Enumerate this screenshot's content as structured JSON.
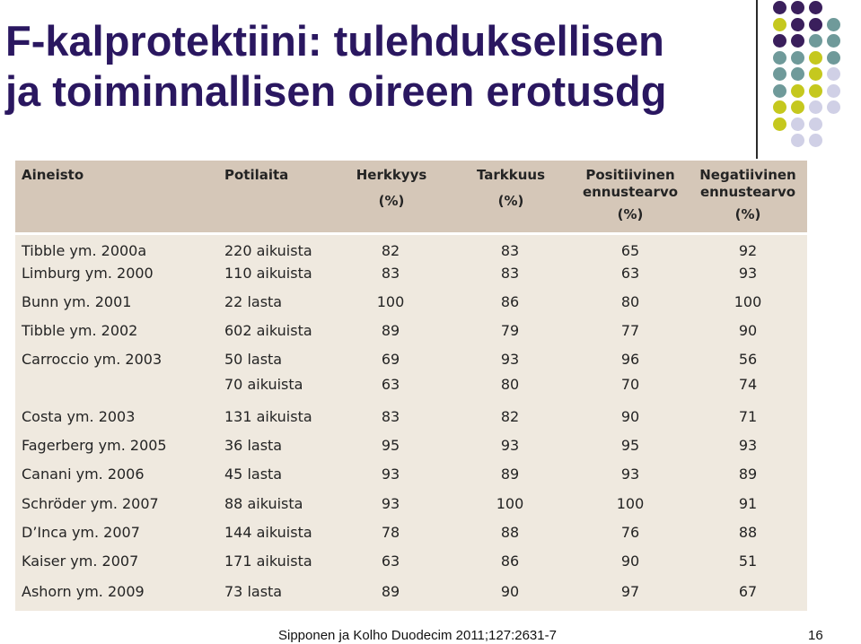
{
  "title": {
    "line1": "F-kalprotektiini: tulehduksellisen",
    "line2": "ja toiminnallisen oireen erotusdg"
  },
  "colors": {
    "title": "#2a1760",
    "dot_purple": "#3a1f5c",
    "dot_teal": "#6f9a9a",
    "dot_lime": "#c5c81e",
    "dot_lavender": "#d0d0e6",
    "table_header_bg": "#d5c7b8",
    "table_body_bg": "#efe9df"
  },
  "table": {
    "headers": {
      "study": "Aineisto",
      "patients": "Potilaita",
      "sensitivity": "Herkkyys",
      "sensitivity_unit": "(%)",
      "specificity": "Tarkkuus",
      "specificity_unit": "(%)",
      "ppv_1": "Positiivinen",
      "ppv_2": "ennustearvo",
      "ppv_unit": "(%)",
      "npv_1": "Negatiivinen",
      "npv_2": "ennustearvo",
      "npv_unit": "(%)"
    },
    "rows": [
      {
        "study": "Tibble ym. 2000a",
        "patients": "220 aikuista",
        "sens": "82",
        "spec": "83",
        "ppv": "65",
        "npv": "92"
      },
      {
        "study": "Limburg ym. 2000",
        "patients": "110 aikuista",
        "sens": "83",
        "spec": "83",
        "ppv": "63",
        "npv": "93"
      },
      {
        "study": "Bunn ym. 2001",
        "patients": "22 lasta",
        "sens": "100",
        "spec": "86",
        "ppv": "80",
        "npv": "100"
      },
      {
        "study": "Tibble ym. 2002",
        "patients": "602 aikuista",
        "sens": "89",
        "spec": "79",
        "ppv": "77",
        "npv": "90"
      },
      {
        "study": "Carroccio ym. 2003",
        "patients": "50 lasta",
        "sens": "69",
        "spec": "93",
        "ppv": "96",
        "npv": "56"
      },
      {
        "study": "",
        "patients": "70 aikuista",
        "sens": "63",
        "spec": "80",
        "ppv": "70",
        "npv": "74"
      },
      {
        "study": "Costa ym. 2003",
        "patients": "131 aikuista",
        "sens": "83",
        "spec": "82",
        "ppv": "90",
        "npv": "71"
      },
      {
        "study": "Fagerberg ym. 2005",
        "patients": "36 lasta",
        "sens": "95",
        "spec": "93",
        "ppv": "95",
        "npv": "93"
      },
      {
        "study": "Canani ym. 2006",
        "patients": "45 lasta",
        "sens": "93",
        "spec": "89",
        "ppv": "93",
        "npv": "89"
      },
      {
        "study": "Schröder ym. 2007",
        "patients": "88 aikuista",
        "sens": "93",
        "spec": "100",
        "ppv": "100",
        "npv": "91"
      },
      {
        "study": "D’Inca ym. 2007",
        "patients": "144 aikuista",
        "sens": "78",
        "spec": "88",
        "ppv": "76",
        "npv": "88"
      },
      {
        "study": "Kaiser ym. 2007",
        "patients": "171 aikuista",
        "sens": "63",
        "spec": "86",
        "ppv": "90",
        "npv": "51"
      },
      {
        "study": "Ashorn ym. 2009",
        "patients": "73 lasta",
        "sens": "89",
        "spec": "90",
        "ppv": "97",
        "npv": "67"
      }
    ]
  },
  "footer": {
    "citation": "Sipponen ja Kolho Duodecim 2011;127:2631-7",
    "page_number": "16"
  }
}
